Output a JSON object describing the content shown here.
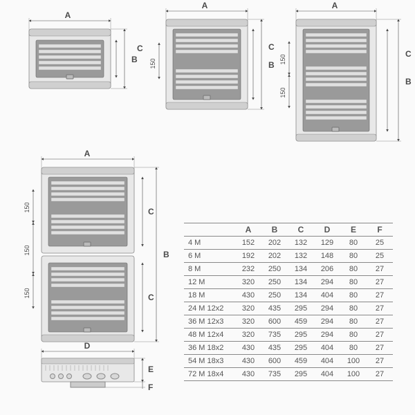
{
  "type": "engineering-diagram",
  "background_color": "#fafafa",
  "table": {
    "columns": [
      "",
      "A",
      "B",
      "C",
      "D",
      "E",
      "F"
    ],
    "rows": [
      [
        "4 M",
        152,
        202,
        132,
        129,
        80,
        25
      ],
      [
        "6 M",
        192,
        202,
        132,
        148,
        80,
        25
      ],
      [
        "8 M",
        232,
        250,
        134,
        206,
        80,
        27
      ],
      [
        "12 M",
        320,
        250,
        134,
        294,
        80,
        27
      ],
      [
        "18 M",
        430,
        250,
        134,
        404,
        80,
        27
      ],
      [
        "24 M 12x2",
        320,
        435,
        295,
        294,
        80,
        27
      ],
      [
        "36 M 12x3",
        320,
        600,
        459,
        294,
        80,
        27
      ],
      [
        "48 M 12x4",
        320,
        735,
        295,
        294,
        80,
        27
      ],
      [
        "36 M 18x2",
        430,
        435,
        295,
        404,
        80,
        27
      ],
      [
        "54 M 18x3",
        430,
        600,
        459,
        404,
        100,
        27
      ],
      [
        "72 M 18x4",
        430,
        735,
        295,
        404,
        100,
        27
      ]
    ],
    "header_fontsize": 12,
    "cell_fontsize": 11,
    "border_color": "#888888",
    "text_color": "#555555"
  },
  "diagrams": {
    "labels": {
      "A": "A",
      "B": "B",
      "C": "C",
      "D": "D",
      "E": "E",
      "F": "F"
    },
    "module_spacing": "150",
    "colors": {
      "body": "#e8e8e8",
      "edge": "#d0d0d0",
      "window": "#9a9a9a",
      "rail": "#e0e0e0",
      "dim_line": "#4a4a4a",
      "label_text": "#4a4a4a"
    },
    "boxes": [
      {
        "id": "single-1row-a",
        "rows": 1
      },
      {
        "id": "single-2row",
        "rows": 2
      },
      {
        "id": "single-3row",
        "rows": 3
      },
      {
        "id": "double-stacked",
        "rows": 4
      },
      {
        "id": "side-profile"
      }
    ]
  }
}
